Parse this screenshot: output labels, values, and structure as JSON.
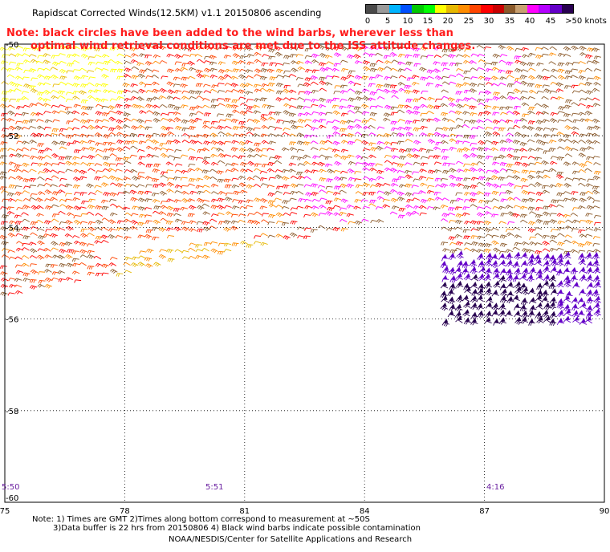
{
  "title": "Rapidscat Corrected Winds(12.5KM) v1.1 20150806 ascending",
  "note": {
    "line1": "Note: black circles have been added to the wind barbs, wherever less than",
    "line2": "optimal wind retrieval conditions are met due to the ISS attitude changes."
  },
  "colorbar": {
    "colors": [
      "#4a4a4a",
      "#9a9a9a",
      "#00b4ff",
      "#0050ff",
      "#00c800",
      "#00ff00",
      "#ffff00",
      "#e6b800",
      "#ff8c00",
      "#ff4500",
      "#ff0000",
      "#c80000",
      "#8b5a2b",
      "#c8a070",
      "#ff00ff",
      "#b400ff",
      "#6400c8",
      "#280050"
    ],
    "labels": [
      "0",
      "5",
      "10",
      "15",
      "20",
      "25",
      "30",
      "35",
      "40",
      "45",
      ">50 knots"
    ]
  },
  "map": {
    "lon_labels": [
      "75",
      "78",
      "81",
      "84",
      "87",
      "90"
    ],
    "lat_labels": [
      "-50",
      "-52",
      "-54",
      "-56",
      "-58",
      "-60"
    ],
    "times": [
      "5:50",
      "5:51",
      "4:16"
    ]
  },
  "chart_data": {
    "type": "map",
    "title": "Rapidscat Corrected Winds(12.5KM) v1.1 20150806 ascending",
    "lon_range": [
      75,
      90
    ],
    "lat_range": [
      -60,
      -50
    ],
    "grid": true,
    "legend": "top-right",
    "units": "knots",
    "speed_bins": [
      0,
      5,
      10,
      15,
      20,
      25,
      30,
      35,
      40,
      45,
      50
    ]
  },
  "footer": {
    "line1": "Note: 1) Times are GMT 2)Times along bottom correspond to measurement at ~50S",
    "line2": "3)Data buffer is 22 hrs from 20150806 4) Black wind barbs indicate possible contamination",
    "line3": "NOAA/NESDIS/Center for Satellite Applications and Research"
  }
}
